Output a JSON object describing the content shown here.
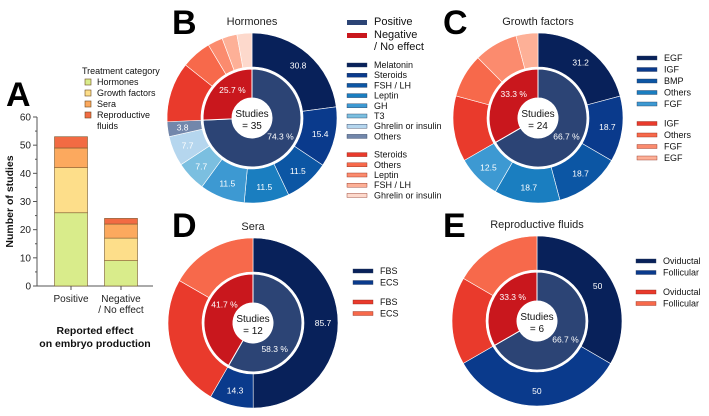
{
  "panels": {
    "A": "A",
    "B": "B",
    "C": "C",
    "D": "D",
    "E": "E"
  },
  "chart_data": [
    {
      "id": "A",
      "type": "bar",
      "stacked": true,
      "title": "",
      "categories": [
        "Positive",
        "Negative\n/ No effect"
      ],
      "category_lines": [
        [
          "Positive"
        ],
        [
          "Negative",
          "/ No effect"
        ]
      ],
      "series": [
        {
          "name": "Hormones",
          "values": [
            26,
            9
          ],
          "color": "#d9ec8b"
        },
        {
          "name": "Growth factors",
          "values": [
            16,
            8
          ],
          "color": "#fdde8a"
        },
        {
          "name": "Sera",
          "values": [
            7,
            5
          ],
          "color": "#fca95e"
        },
        {
          "name": "Reproductive fluids",
          "values": [
            4,
            2
          ],
          "color": "#f26b43"
        }
      ],
      "legend_title": "Treatment category",
      "legend_labels": [
        [
          "Hormones"
        ],
        [
          "Growth factors"
        ],
        [
          "Sera"
        ],
        [
          "Reproductive",
          "fluids"
        ]
      ],
      "legend_position": "top-right",
      "ylabel": "Number of studies",
      "xlabel_lines": [
        "Reported effect",
        "on embryo production"
      ],
      "ylim": [
        0,
        60
      ],
      "yticks": [
        0,
        10,
        20,
        30,
        40,
        50,
        60
      ]
    },
    {
      "id": "B",
      "type": "pie",
      "title": "Hormones",
      "center_lines": [
        "Studies",
        "= 35"
      ],
      "inner": [
        {
          "name": "Positive",
          "percent": 74.3,
          "label": "74.3 %",
          "color": "#2c4475"
        },
        {
          "name": "Negative / No effect",
          "percent": 25.7,
          "label": "25.7 %",
          "color": "#c9171d"
        }
      ],
      "outer_positive": [
        {
          "name": "Melatonin",
          "value": 30.8,
          "label": "30.8",
          "color": "#08215a"
        },
        {
          "name": "Steroids",
          "value": 15.4,
          "label": "15.4",
          "color": "#0a3a8c"
        },
        {
          "name": "FSH / LH",
          "value": 11.5,
          "label": "11.5",
          "color": "#0c56a4"
        },
        {
          "name": "Leptin",
          "value": 11.5,
          "label": "11.5",
          "color": "#1a7ec0"
        },
        {
          "name": "GH",
          "value": 11.5,
          "label": "11.5",
          "color": "#3d99d2"
        },
        {
          "name": "T3",
          "value": 7.7,
          "label": "7.7",
          "color": "#7bbfe0"
        },
        {
          "name": "Ghrelin or insulin",
          "value": 7.7,
          "label": "7.7",
          "color": "#b5d6ee"
        },
        {
          "name": "Others",
          "value": 3.8,
          "label": "3.8",
          "color": "#7287ab"
        }
      ],
      "outer_negative": [
        {
          "name": "Steroids",
          "value": 4,
          "color": "#e93a2c"
        },
        {
          "name": "Others",
          "value": 2,
          "color": "#f7694b"
        },
        {
          "name": "Leptin",
          "value": 1,
          "color": "#fb8b6e"
        },
        {
          "name": "FSH / LH",
          "value": 1,
          "color": "#fdb097"
        },
        {
          "name": "Ghrelin or insulin",
          "value": 1,
          "color": "#fdd9cc"
        }
      ],
      "legend_main": [
        {
          "lines": [
            "Positive"
          ],
          "color": "#2c4475"
        },
        {
          "lines": [
            "Negative",
            "/ No effect"
          ],
          "color": "#c9171d"
        }
      ]
    },
    {
      "id": "C",
      "type": "pie",
      "title": "Growth factors",
      "center_lines": [
        "Studies",
        "= 24"
      ],
      "inner": [
        {
          "name": "Positive",
          "percent": 66.7,
          "label": "66.7 %",
          "color": "#2c4475"
        },
        {
          "name": "Negative / No effect",
          "percent": 33.3,
          "label": "33.3 %",
          "color": "#c9171d"
        }
      ],
      "outer_positive": [
        {
          "name": "EGF",
          "value": 31.2,
          "label": "31.2",
          "color": "#08215a"
        },
        {
          "name": "IGF",
          "value": 18.7,
          "label": "18.7",
          "color": "#0a3a8c"
        },
        {
          "name": "BMP",
          "value": 18.7,
          "label": "18.7",
          "color": "#0c56a4"
        },
        {
          "name": "Others",
          "value": 18.7,
          "label": "18.7",
          "color": "#1a7ec0"
        },
        {
          "name": "FGF",
          "value": 12.5,
          "label": "12.5",
          "color": "#3d99d2"
        }
      ],
      "outer_negative": [
        {
          "name": "IGF",
          "value": 3,
          "color": "#e93a2c"
        },
        {
          "name": "Others",
          "value": 2,
          "color": "#f7694b"
        },
        {
          "name": "FGF",
          "value": 2,
          "color": "#fb8b6e"
        },
        {
          "name": "EGF",
          "value": 1,
          "color": "#fdb097"
        }
      ]
    },
    {
      "id": "D",
      "type": "pie",
      "title": "Sera",
      "center_lines": [
        "Studies",
        "= 12"
      ],
      "inner": [
        {
          "name": "Positive",
          "percent": 58.3,
          "label": "58.3 %",
          "color": "#2c4475"
        },
        {
          "name": "Negative / No effect",
          "percent": 41.7,
          "label": "41.7 %",
          "color": "#c9171d"
        }
      ],
      "outer_positive": [
        {
          "name": "FBS",
          "value": 85.7,
          "label": "85.7",
          "color": "#08215a"
        },
        {
          "name": "ECS",
          "value": 14.3,
          "label": "14.3",
          "color": "#0a3a8c"
        }
      ],
      "outer_negative": [
        {
          "name": "FBS",
          "value": 3,
          "color": "#e93a2c"
        },
        {
          "name": "ECS",
          "value": 2,
          "color": "#f7694b"
        }
      ]
    },
    {
      "id": "E",
      "type": "pie",
      "title": "Reproductive fluids",
      "center_lines": [
        "Studies",
        "= 6"
      ],
      "inner": [
        {
          "name": "Positive",
          "percent": 66.7,
          "label": "66.7 %",
          "color": "#2c4475"
        },
        {
          "name": "Negative / No effect",
          "percent": 33.3,
          "label": "33.3 %",
          "color": "#c9171d"
        }
      ],
      "outer_positive": [
        {
          "name": "Oviductal",
          "value": 50,
          "label": "50",
          "color": "#08215a"
        },
        {
          "name": "Follicular",
          "value": 50,
          "label": "50",
          "color": "#0a3a8c"
        }
      ],
      "outer_negative": [
        {
          "name": "Oviductal",
          "value": 1,
          "color": "#e93a2c"
        },
        {
          "name": "Follicular",
          "value": 1,
          "color": "#f7694b"
        }
      ]
    }
  ]
}
